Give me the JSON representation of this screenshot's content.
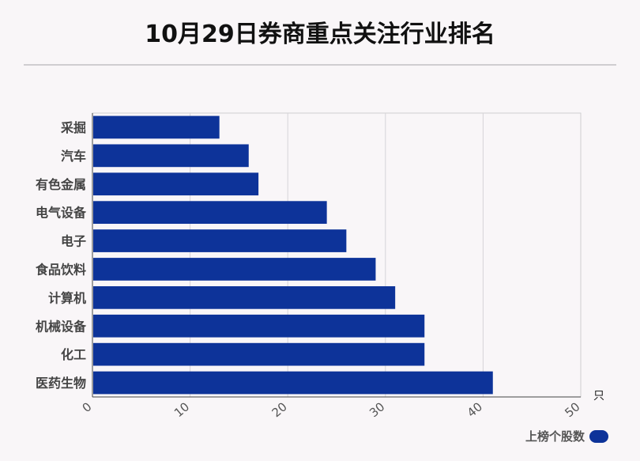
{
  "title": "10月29日券商重点关注行业排名",
  "chart_data": {
    "type": "bar",
    "orientation": "horizontal",
    "categories": [
      "采掘",
      "汽车",
      "有色金属",
      "电气设备",
      "电子",
      "食品饮料",
      "计算机",
      "机械设备",
      "化工",
      "医药生物"
    ],
    "series": [
      {
        "name": "上榜个股数",
        "values": [
          13,
          16,
          17,
          24,
          26,
          29,
          31,
          34,
          34,
          41
        ]
      }
    ],
    "xlim": [
      0,
      50
    ],
    "xticks": [
      0,
      10,
      20,
      30,
      40,
      50
    ],
    "unit": "只",
    "grid": true,
    "legend": "bottom-right",
    "bar_color": "#0d3399"
  }
}
